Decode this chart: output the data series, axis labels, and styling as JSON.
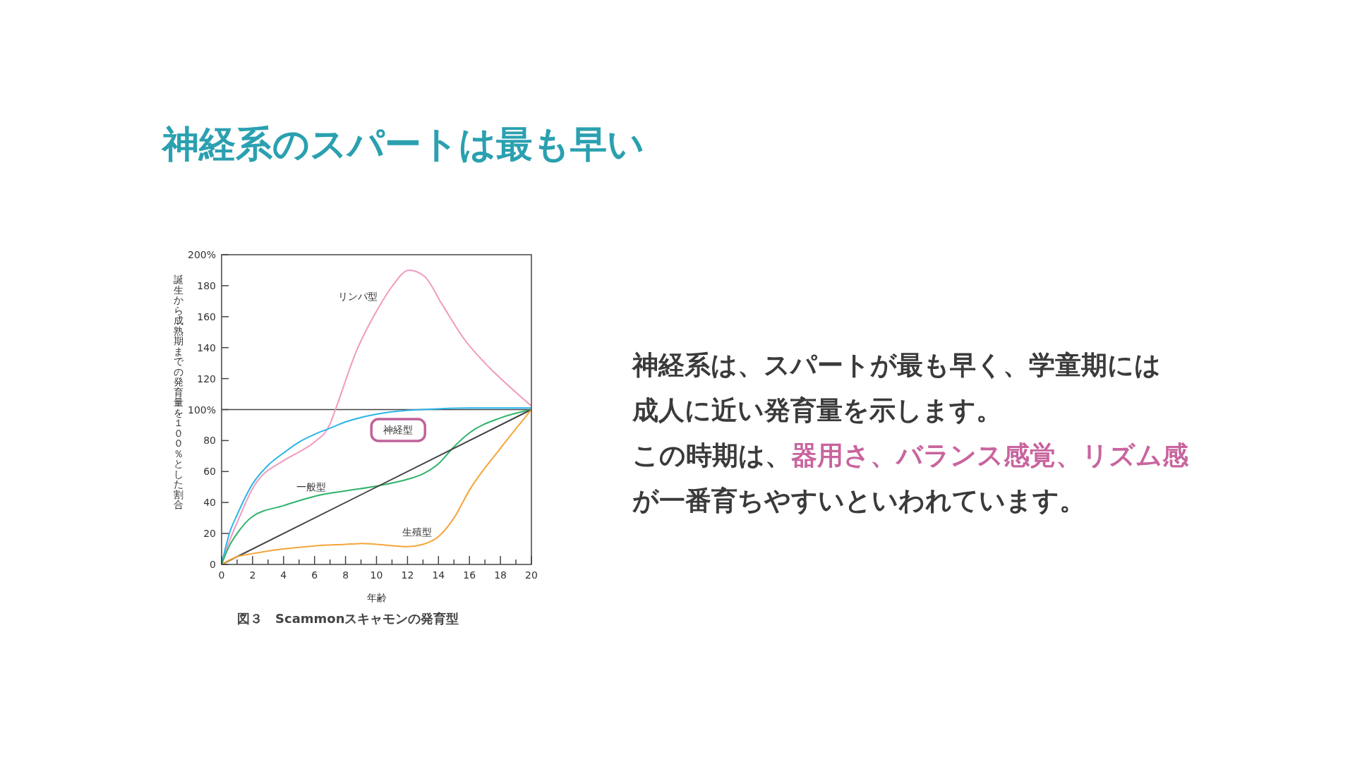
{
  "chart_data": {
    "type": "line",
    "title": "神経系のスパートは最も早い",
    "xlabel": "年齢",
    "ylabel": "誕生から成熟期までの発育量を１００％とした割合",
    "xlim": [
      0,
      20
    ],
    "ylim": [
      0,
      200
    ],
    "xticks": [
      0,
      {
        "value": 1,
        "label": null
      },
      2,
      {
        "value": 3,
        "label": null
      },
      4,
      {
        "value": 5,
        "label": null
      },
      6,
      {
        "value": 7,
        "label": null
      },
      8,
      {
        "value": 9,
        "label": null
      },
      10,
      {
        "value": 11,
        "label": null
      },
      12,
      {
        "value": 13,
        "label": null
      },
      14,
      {
        "value": 15,
        "label": null
      },
      16,
      {
        "value": 17,
        "label": null
      },
      18,
      {
        "value": 19,
        "label": null
      },
      20
    ],
    "yticks": [
      0,
      20,
      40,
      60,
      80,
      {
        "value": 100,
        "label": "100%"
      },
      120,
      140,
      160,
      180,
      {
        "value": 200,
        "label": "200%"
      }
    ],
    "grid": false,
    "marker": "none",
    "line_style": "solid",
    "ref_lines": [
      {
        "axis": "y",
        "value": 100,
        "color": "#444444"
      }
    ],
    "series": [
      {
        "name": "リンパ型",
        "color": "#f09ac0",
        "x": [
          0,
          0.5,
          1,
          2,
          4,
          5,
          6,
          7,
          7.35,
          8.67,
          10.2,
          11,
          12.1,
          13.1,
          14.2,
          15.7,
          17.3,
          18.9,
          20
        ],
        "values": [
          0,
          15,
          27,
          49,
          67,
          72.6,
          79,
          90.7,
          100,
          137,
          167,
          179.5,
          190,
          186,
          168.5,
          145,
          127,
          112,
          102.4
        ]
      },
      {
        "name": "神経型",
        "color": "#2bb5e8",
        "x": [
          0,
          0.5,
          1,
          2,
          3,
          4,
          5,
          6,
          7,
          8,
          10,
          12,
          14,
          16,
          18,
          20
        ],
        "values": [
          0,
          20,
          32,
          52,
          64,
          72,
          79,
          84,
          88,
          92,
          97,
          99.5,
          100.5,
          101,
          101,
          101
        ]
      },
      {
        "name": "一般型",
        "color": "#2fb36b",
        "x": [
          0,
          0.5,
          1,
          2,
          4,
          6,
          8,
          10,
          12,
          13,
          14,
          15,
          16,
          18,
          20
        ],
        "values": [
          0,
          12,
          20,
          31,
          38,
          44,
          47.5,
          50.6,
          55,
          58.5,
          65,
          76,
          85,
          94.6,
          100
        ]
      },
      {
        "color": "#444444",
        "x": [
          0,
          20
        ],
        "values": [
          0,
          100
        ]
      },
      {
        "name": "生殖型",
        "color": "#f5a53b",
        "x": [
          0,
          1,
          2,
          4,
          6,
          8,
          9,
          10,
          12,
          13,
          14,
          15,
          16,
          18,
          20
        ],
        "values": [
          0,
          5,
          7,
          10,
          12,
          13,
          13.5,
          13,
          11.5,
          13,
          18,
          30,
          48,
          75,
          100
        ]
      }
    ],
    "annotations": [
      "神経系は、スパートが最も早く、学童期には",
      "成人に近い発育量を示します。",
      "この時期は、",
      "器用さ、バランス感覚、リズム感",
      "が一番育ちやすいといわれています。",
      "図３　Scammonスキャモンの発育型"
    ]
  }
}
